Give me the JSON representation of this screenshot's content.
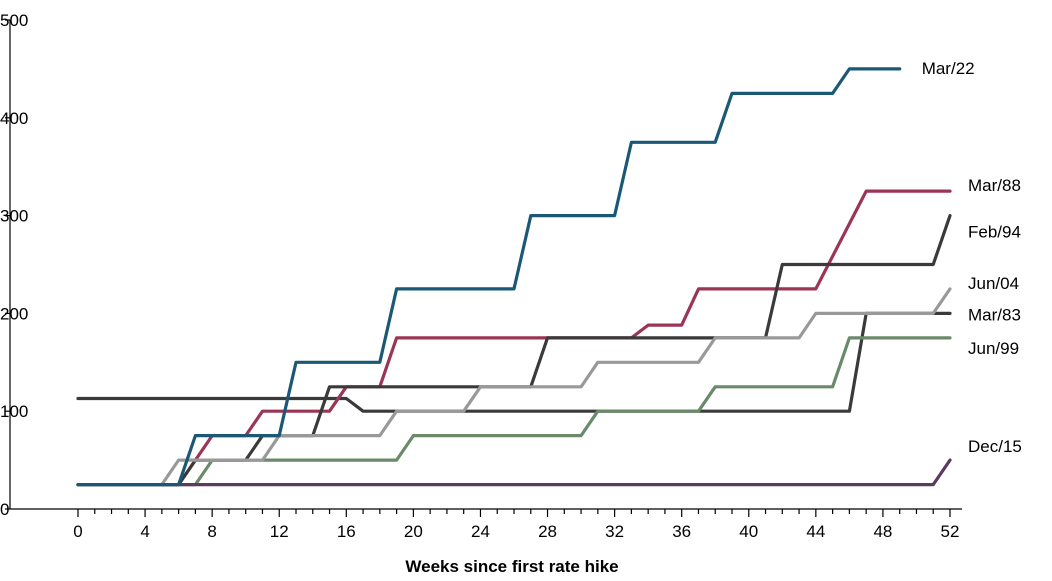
{
  "chart_data": {
    "type": "line",
    "title": "",
    "xlabel": "Weeks since first rate hike",
    "ylabel": "",
    "xlim": [
      0,
      52
    ],
    "ylim": [
      0,
      500
    ],
    "xticks": [
      0,
      4,
      8,
      12,
      16,
      20,
      24,
      28,
      32,
      36,
      40,
      44,
      48,
      52
    ],
    "yticks": [
      0,
      100,
      200,
      300,
      400,
      500
    ],
    "grid": false,
    "legend": "labels at line ends (right side)",
    "series": [
      {
        "name": "Mar/83",
        "color": "#3a3a3a",
        "points": [
          [
            0,
            113
          ],
          [
            15,
            113
          ],
          [
            16,
            113
          ],
          [
            17,
            100
          ],
          [
            46,
            100
          ],
          [
            47,
            200
          ],
          [
            52,
            200
          ]
        ]
      },
      {
        "name": "Mar/88",
        "color": "#9b3554",
        "points": [
          [
            0,
            25
          ],
          [
            6,
            25
          ],
          [
            8,
            75
          ],
          [
            10,
            75
          ],
          [
            11,
            100
          ],
          [
            15,
            100
          ],
          [
            16,
            125
          ],
          [
            18,
            125
          ],
          [
            19,
            175
          ],
          [
            33,
            175
          ],
          [
            34,
            188
          ],
          [
            36,
            188
          ],
          [
            37,
            225
          ],
          [
            44,
            225
          ],
          [
            47,
            325
          ],
          [
            52,
            325
          ]
        ]
      },
      {
        "name": "Feb/94",
        "color": "#3a3a3a",
        "points": [
          [
            0,
            25
          ],
          [
            6,
            25
          ],
          [
            7,
            50
          ],
          [
            10,
            50
          ],
          [
            11,
            75
          ],
          [
            14,
            75
          ],
          [
            15,
            125
          ],
          [
            27,
            125
          ],
          [
            28,
            175
          ],
          [
            41,
            175
          ],
          [
            42,
            250
          ],
          [
            51,
            250
          ],
          [
            52,
            300
          ]
        ]
      },
      {
        "name": "Jun/99",
        "color": "#6a8a6a",
        "points": [
          [
            0,
            25
          ],
          [
            7,
            25
          ],
          [
            8,
            50
          ],
          [
            19,
            50
          ],
          [
            20,
            75
          ],
          [
            30,
            75
          ],
          [
            31,
            100
          ],
          [
            37,
            100
          ],
          [
            38,
            125
          ],
          [
            45,
            125
          ],
          [
            46,
            175
          ],
          [
            52,
            175
          ]
        ]
      },
      {
        "name": "Jun/04",
        "color": "#999999",
        "points": [
          [
            0,
            25
          ],
          [
            5,
            25
          ],
          [
            6,
            50
          ],
          [
            11,
            50
          ],
          [
            12,
            75
          ],
          [
            18,
            75
          ],
          [
            19,
            100
          ],
          [
            23,
            100
          ],
          [
            24,
            125
          ],
          [
            30,
            125
          ],
          [
            31,
            150
          ],
          [
            37,
            150
          ],
          [
            38,
            175
          ],
          [
            43,
            175
          ],
          [
            44,
            200
          ],
          [
            51,
            200
          ],
          [
            52,
            225
          ]
        ]
      },
      {
        "name": "Dec/15",
        "color": "#5a3a5e",
        "points": [
          [
            0,
            25
          ],
          [
            51,
            25
          ],
          [
            52,
            50
          ]
        ]
      },
      {
        "name": "Mar/22",
        "color": "#1a5876",
        "points": [
          [
            0,
            25
          ],
          [
            6,
            25
          ],
          [
            7,
            75
          ],
          [
            12,
            75
          ],
          [
            13,
            150
          ],
          [
            18,
            150
          ],
          [
            19,
            225
          ],
          [
            26,
            225
          ],
          [
            27,
            300
          ],
          [
            32,
            300
          ],
          [
            33,
            375
          ],
          [
            38,
            375
          ],
          [
            39,
            425
          ],
          [
            45,
            425
          ],
          [
            46,
            450
          ],
          [
            49,
            450
          ]
        ]
      }
    ]
  }
}
